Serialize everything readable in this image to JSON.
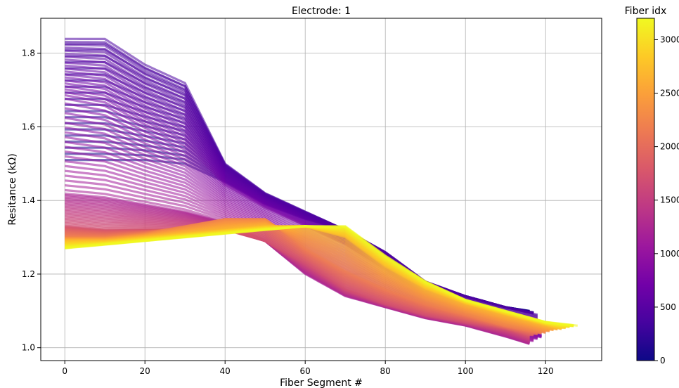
{
  "chart_data": {
    "type": "line",
    "title": "Electrode: 1",
    "xlabel": "Fiber Segment #",
    "ylabel": "Resitance (kΩ)",
    "xlim": [
      -6,
      134
    ],
    "ylim": [
      0.965,
      1.895
    ],
    "xticks": [
      0,
      20,
      40,
      60,
      80,
      100,
      120
    ],
    "yticks": [
      1.0,
      1.2,
      1.4,
      1.6,
      1.8
    ],
    "grid": true,
    "colorbar": {
      "label": "Fiber idx",
      "range": [
        0,
        3200
      ],
      "ticks": [
        0,
        500,
        1000,
        1500,
        2000,
        2500,
        3000
      ],
      "colormap": "plasma",
      "stops": [
        "#0d0887",
        "#46039f",
        "#7201a8",
        "#9c179e",
        "#bd3786",
        "#d8576b",
        "#ed7953",
        "#fb9f3a",
        "#fdca26",
        "#f0f921"
      ]
    },
    "series_count": 3200,
    "series": [
      {
        "fiber_idx": 0,
        "x": [
          0,
          10,
          20,
          30,
          40,
          50,
          60,
          70,
          80,
          90,
          100,
          110,
          116
        ],
        "y": [
          1.51,
          1.51,
          1.51,
          1.5,
          1.45,
          1.39,
          1.35,
          1.32,
          1.25,
          1.17,
          1.14,
          1.11,
          1.1
        ]
      },
      {
        "fiber_idx": 400,
        "x": [
          0,
          10,
          20,
          30,
          40,
          50,
          60,
          70,
          80,
          90,
          100,
          110,
          118
        ],
        "y": [
          1.84,
          1.84,
          1.77,
          1.72,
          1.5,
          1.42,
          1.37,
          1.32,
          1.26,
          1.18,
          1.14,
          1.11,
          1.09
        ]
      },
      {
        "fiber_idx": 800,
        "x": [
          0,
          10,
          20,
          30,
          40,
          50,
          60,
          70,
          80,
          90,
          100,
          110,
          120
        ],
        "y": [
          1.68,
          1.66,
          1.6,
          1.55,
          1.44,
          1.38,
          1.33,
          1.28,
          1.21,
          1.14,
          1.1,
          1.06,
          1.03
        ]
      },
      {
        "fiber_idx": 1200,
        "x": [
          0,
          10,
          20,
          30,
          40,
          50,
          60,
          70,
          80,
          90,
          100,
          110,
          116
        ],
        "y": [
          1.42,
          1.41,
          1.39,
          1.37,
          1.34,
          1.29,
          1.2,
          1.14,
          1.11,
          1.08,
          1.06,
          1.03,
          1.01
        ]
      },
      {
        "fiber_idx": 1700,
        "x": [
          0,
          10,
          20,
          30,
          40,
          50,
          60,
          70,
          80,
          90,
          100,
          110,
          116
        ],
        "y": [
          1.33,
          1.32,
          1.32,
          1.32,
          1.32,
          1.29,
          1.23,
          1.16,
          1.12,
          1.09,
          1.07,
          1.05,
          1.03
        ]
      },
      {
        "fiber_idx": 2200,
        "x": [
          0,
          10,
          20,
          30,
          40,
          50,
          60,
          70,
          80,
          90,
          100,
          110,
          120
        ],
        "y": [
          1.3,
          1.3,
          1.31,
          1.33,
          1.35,
          1.35,
          1.27,
          1.21,
          1.16,
          1.12,
          1.09,
          1.06,
          1.04
        ]
      },
      {
        "fiber_idx": 2700,
        "x": [
          0,
          10,
          20,
          30,
          40,
          50,
          60,
          70,
          80,
          90,
          100,
          110,
          124
        ],
        "y": [
          1.29,
          1.29,
          1.3,
          1.31,
          1.32,
          1.33,
          1.33,
          1.3,
          1.22,
          1.16,
          1.12,
          1.09,
          1.05
        ]
      },
      {
        "fiber_idx": 3200,
        "x": [
          0,
          10,
          20,
          30,
          40,
          50,
          60,
          70,
          80,
          90,
          100,
          110,
          120,
          128
        ],
        "y": [
          1.27,
          1.28,
          1.29,
          1.3,
          1.31,
          1.32,
          1.33,
          1.33,
          1.25,
          1.18,
          1.13,
          1.1,
          1.07,
          1.06
        ]
      }
    ]
  }
}
